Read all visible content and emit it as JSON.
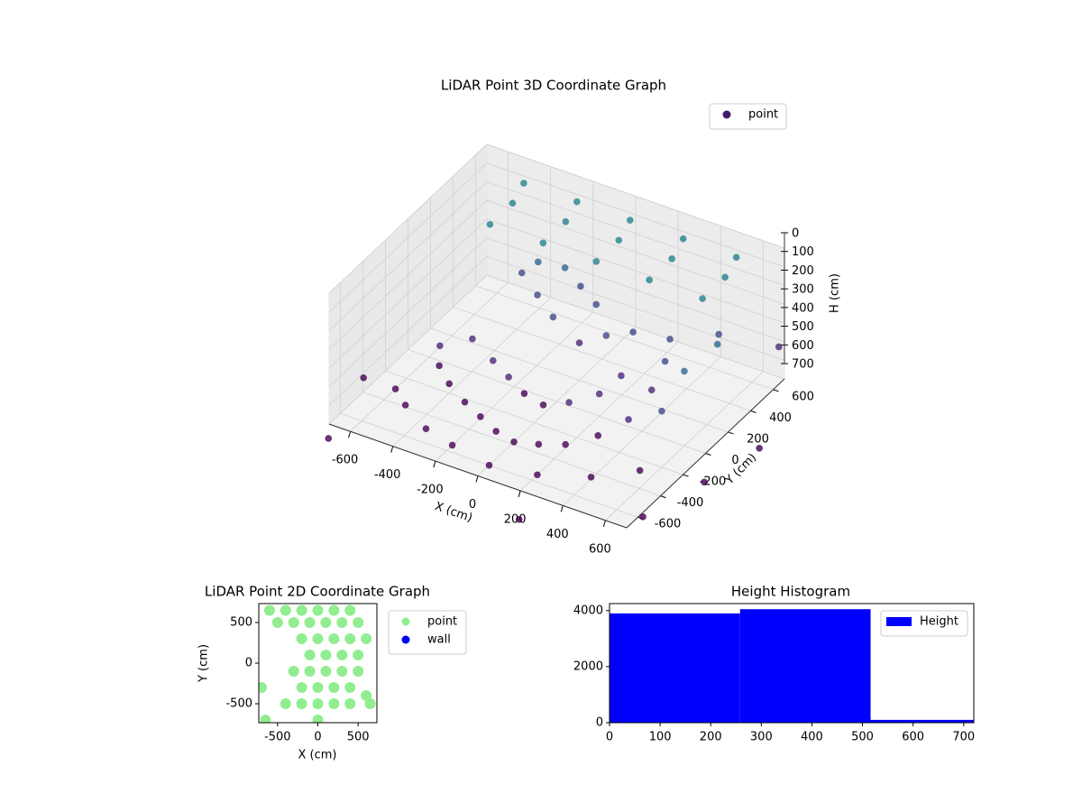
{
  "chart_data": [
    {
      "type": "scatter3d",
      "title": "LiDAR Point 3D Coordinate Graph",
      "xlabel": "X (cm)",
      "ylabel": "Y (cm)",
      "zlabel": "H (cm)",
      "xlim": [
        -700,
        700
      ],
      "ylim": [
        -700,
        700
      ],
      "zlim": [
        700,
        0
      ],
      "xticks": [
        -600,
        -400,
        -200,
        0,
        200,
        400,
        600
      ],
      "yticks": [
        -600,
        -400,
        -200,
        0,
        200,
        400,
        600
      ],
      "zticks": [
        0,
        100,
        200,
        300,
        400,
        500,
        600,
        700
      ],
      "colormap": "viridis",
      "legend": "upper right",
      "series": [
        {
          "name": "point",
          "color": "#46186e",
          "x": [
            -500,
            -250,
            0,
            250,
            500,
            -500,
            -250,
            0,
            250,
            500,
            -500,
            -250,
            0,
            250,
            500,
            -400,
            -300,
            -200,
            -100,
            0,
            100,
            200,
            300,
            380,
            420,
            430,
            400,
            -300,
            -200,
            -100,
            0,
            100,
            200,
            250,
            -300,
            -200,
            -100,
            -250,
            -150,
            0,
            100,
            200,
            0,
            -350,
            -500,
            -550,
            -450,
            -600,
            -500,
            -350,
            -200,
            0,
            200,
            400,
            550,
            600,
            650,
            600,
            550,
            -750,
            750,
            -650,
            700,
            800,
            300,
            900
          ],
          "y": [
            350,
            350,
            350,
            350,
            350,
            550,
            550,
            550,
            550,
            550,
            650,
            650,
            650,
            650,
            650,
            -200,
            -250,
            -300,
            -350,
            -380,
            -350,
            -300,
            -200,
            -80,
            50,
            150,
            250,
            0,
            -50,
            -100,
            -120,
            -80,
            0,
            100,
            400,
            450,
            400,
            300,
            250,
            200,
            250,
            300,
            350,
            350,
            -100,
            0,
            100,
            -300,
            -400,
            -500,
            -550,
            -600,
            -550,
            -450,
            -300,
            0,
            200,
            -200,
            400,
            -300,
            -650,
            -800,
            650,
            -200,
            -900,
            100
          ],
          "z": [
            150,
            150,
            150,
            150,
            150,
            150,
            150,
            150,
            150,
            150,
            100,
            100,
            100,
            100,
            100,
            650,
            680,
            690,
            700,
            700,
            690,
            680,
            650,
            600,
            500,
            400,
            350,
            600,
            620,
            640,
            650,
            620,
            580,
            520,
            300,
            320,
            350,
            400,
            450,
            500,
            450,
            420,
            380,
            350,
            650,
            620,
            600,
            700,
            690,
            700,
            700,
            700,
            700,
            690,
            680,
            300,
            250,
            400,
            350,
            700,
            650,
            700,
            500,
            700,
            700,
            650
          ]
        }
      ]
    },
    {
      "type": "scatter",
      "title": "LiDAR Point 2D Coordinate Graph",
      "xlabel": "X (cm)",
      "ylabel": "Y (cm)",
      "xlim": [
        -733,
        733
      ],
      "ylim": [
        -733,
        733
      ],
      "xticks": [
        -500,
        0,
        500
      ],
      "yticks": [
        -500,
        0,
        500
      ],
      "legend": "outside right",
      "series": [
        {
          "name": "point",
          "color": "#90ee90",
          "x": [
            -600,
            -400,
            -200,
            0,
            200,
            400,
            -500,
            -300,
            -100,
            100,
            300,
            500,
            -200,
            0,
            200,
            400,
            600,
            -100,
            100,
            300,
            500,
            -300,
            -100,
            100,
            300,
            500,
            -200,
            0,
            200,
            400,
            -400,
            -200,
            0,
            200,
            400,
            600,
            -700,
            650,
            -650,
            0
          ],
          "y": [
            650,
            650,
            650,
            650,
            650,
            650,
            500,
            500,
            500,
            500,
            500,
            500,
            300,
            300,
            300,
            300,
            300,
            100,
            100,
            100,
            100,
            -100,
            -100,
            -100,
            -100,
            -100,
            -300,
            -300,
            -300,
            -300,
            -500,
            -500,
            -500,
            -500,
            -500,
            -400,
            -300,
            -500,
            -700,
            -700
          ]
        },
        {
          "name": "wall",
          "color": "#0000ff",
          "x": [],
          "y": []
        }
      ]
    },
    {
      "type": "histogram",
      "title": "Height Histogram",
      "name": "Height",
      "color": "#0000ff",
      "xlim": [
        0,
        720
      ],
      "ylim": [
        0,
        4250
      ],
      "xticks": [
        0,
        100,
        200,
        300,
        400,
        500,
        600,
        700
      ],
      "yticks": [
        0,
        2000,
        4000
      ],
      "bins": [
        0,
        258,
        516,
        774
      ],
      "counts": [
        3900,
        4050,
        100
      ],
      "legend": "upper right"
    }
  ]
}
